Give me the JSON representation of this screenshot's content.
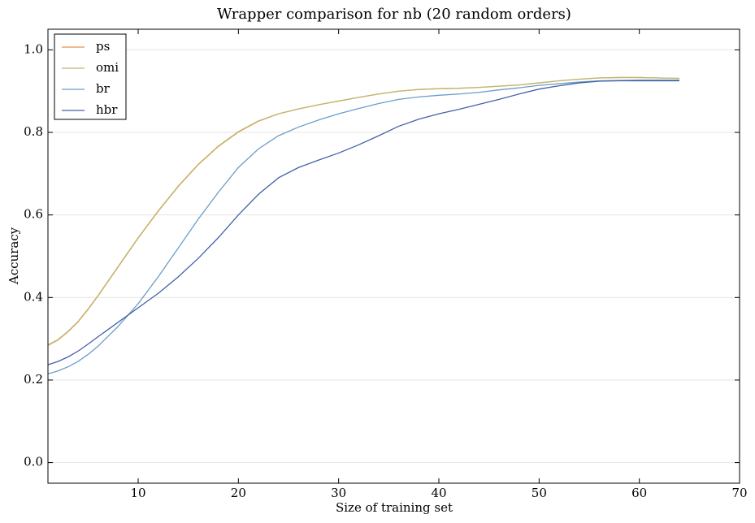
{
  "chart_data": {
    "type": "line",
    "title": "Wrapper comparison for nb (20 random orders)",
    "x_label": "Size of training set",
    "y_label": "Accuracy",
    "x": [
      1,
      2,
      3,
      4,
      5,
      6,
      8,
      10,
      12,
      14,
      16,
      18,
      20,
      22,
      24,
      26,
      28,
      30,
      32,
      34,
      36,
      38,
      40,
      42,
      44,
      46,
      48,
      50,
      52,
      54,
      56,
      58,
      60,
      62,
      64
    ],
    "series": [
      {
        "name": "ps",
        "color": "#e8914f",
        "values": [
          0.284,
          0.297,
          0.317,
          0.341,
          0.371,
          0.404,
          0.474,
          0.544,
          0.609,
          0.669,
          0.722,
          0.766,
          0.801,
          0.827,
          0.845,
          0.857,
          0.867,
          0.876,
          0.885,
          0.893,
          0.9,
          0.904,
          0.906,
          0.907,
          0.909,
          0.912,
          0.915,
          0.92,
          0.925,
          0.929,
          0.932,
          0.933,
          0.933,
          0.932,
          0.931
        ]
      },
      {
        "name": "omi",
        "color": "#c0b873",
        "values": [
          0.285,
          0.298,
          0.318,
          0.342,
          0.372,
          0.405,
          0.475,
          0.545,
          0.61,
          0.67,
          0.723,
          0.767,
          0.802,
          0.828,
          0.845,
          0.857,
          0.867,
          0.876,
          0.885,
          0.893,
          0.9,
          0.904,
          0.906,
          0.907,
          0.909,
          0.912,
          0.915,
          0.92,
          0.925,
          0.929,
          0.932,
          0.933,
          0.933,
          0.932,
          0.931
        ]
      },
      {
        "name": "br",
        "color": "#6a9ec8",
        "values": [
          0.215,
          0.222,
          0.232,
          0.245,
          0.262,
          0.282,
          0.33,
          0.385,
          0.45,
          0.52,
          0.59,
          0.655,
          0.715,
          0.76,
          0.792,
          0.813,
          0.83,
          0.845,
          0.858,
          0.87,
          0.88,
          0.886,
          0.89,
          0.893,
          0.897,
          0.903,
          0.908,
          0.914,
          0.918,
          0.922,
          0.925,
          0.926,
          0.927,
          0.927,
          0.927
        ]
      },
      {
        "name": "hbr",
        "color": "#4460a8",
        "values": [
          0.237,
          0.245,
          0.256,
          0.27,
          0.287,
          0.305,
          0.34,
          0.375,
          0.41,
          0.45,
          0.495,
          0.545,
          0.6,
          0.65,
          0.69,
          0.715,
          0.733,
          0.75,
          0.77,
          0.792,
          0.815,
          0.832,
          0.845,
          0.856,
          0.868,
          0.88,
          0.893,
          0.905,
          0.913,
          0.92,
          0.924,
          0.925,
          0.925,
          0.925,
          0.925
        ]
      }
    ],
    "xlim": [
      1,
      70
    ],
    "xticks": [
      10,
      20,
      30,
      40,
      50,
      60,
      70
    ],
    "ylim": [
      -0.05,
      1.05
    ],
    "yticks": [
      {
        "value": 0,
        "label": "0.0"
      },
      {
        "value": 0.2,
        "label": "0.2"
      },
      {
        "value": 0.4,
        "label": "0.4"
      },
      {
        "value": 0.6,
        "label": "0.6"
      },
      {
        "value": 0.8,
        "label": "0.8"
      },
      {
        "value": 1,
        "label": "1.0"
      }
    ],
    "grid": true,
    "legend": "upper-left"
  }
}
